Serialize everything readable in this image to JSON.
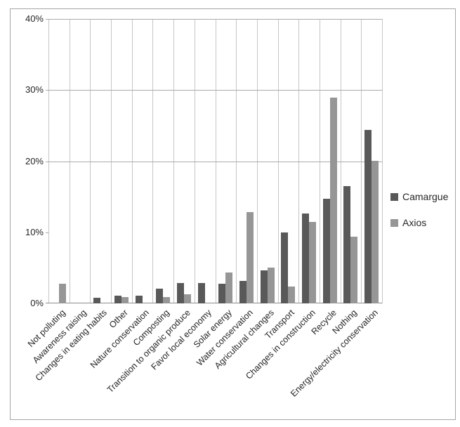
{
  "chart_data": {
    "type": "bar",
    "title": "",
    "xlabel": "",
    "ylabel": "",
    "categories": [
      "Not polluting",
      "Awareness raising",
      "Changes in eating habits",
      "Other",
      "Nature conservation",
      "Composting",
      "Transition to organic produce",
      "Favor local economy",
      "Solar energy",
      "Water conservation",
      "Agricultural changes",
      "Transport",
      "Changes in construction",
      "Recycle",
      "Nothing",
      "Energy/electricity conservation"
    ],
    "series": [
      {
        "name": "Camargue",
        "color": "#595959",
        "values": [
          0,
          0,
          0.8,
          1.1,
          1.1,
          2.1,
          2.9,
          2.9,
          2.8,
          3.2,
          4.6,
          10.0,
          12.6,
          14.7,
          16.5,
          24.4
        ]
      },
      {
        "name": "Axios",
        "color": "#969696",
        "values": [
          2.8,
          0,
          0,
          0.9,
          0,
          0.9,
          1.3,
          0,
          4.3,
          12.8,
          5.0,
          2.4,
          11.5,
          28.9,
          9.4,
          20.0
        ]
      }
    ],
    "ylim": [
      0,
      40
    ],
    "ytick_step": 10,
    "ytick_labels": [
      "0%",
      "10%",
      "20%",
      "30%",
      "40%"
    ],
    "hgridlines_percent": [
      20,
      30,
      40
    ],
    "legend_position": "right",
    "colors": {
      "frame_border": "#a6a6a6",
      "vertical_gridline": "#c6c6c6",
      "horizontal_gridline": "#ababab",
      "axis_line": "#8c8c8c",
      "text": "#262626"
    }
  }
}
